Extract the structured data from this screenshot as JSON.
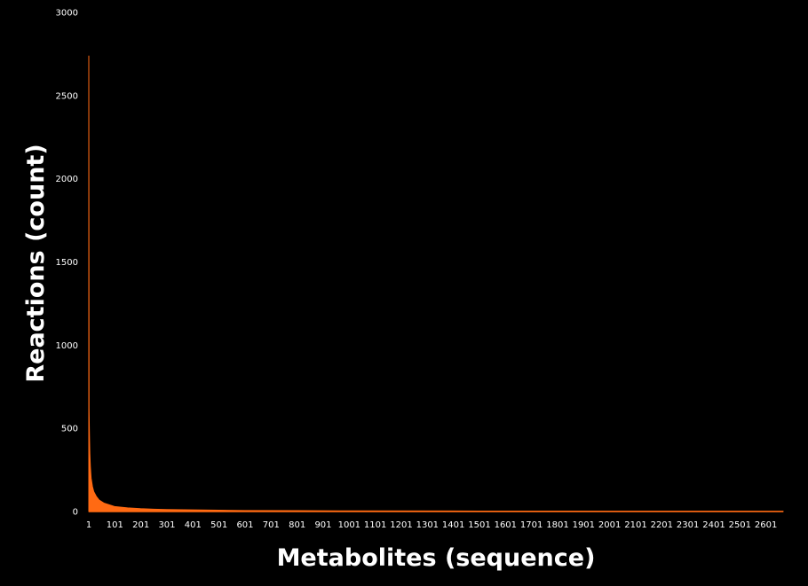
{
  "chart_data": {
    "type": "area",
    "title": "",
    "xlabel": "Metabolites (sequence)",
    "ylabel": "Reactions (count)",
    "ylim": [
      0,
      3000
    ],
    "yticks": [
      0,
      500,
      1000,
      1500,
      2000,
      2500,
      3000
    ],
    "xlim": [
      1,
      2667
    ],
    "xticks": [
      "1",
      "101",
      "201",
      "301",
      "401",
      "501",
      "601",
      "701",
      "801",
      "901",
      "1001",
      "1101",
      "1201",
      "1301",
      "1401",
      "1501",
      "1601",
      "1701",
      "1801",
      "1901",
      "2001",
      "2101",
      "2201",
      "2301",
      "2401",
      "2501",
      "2601"
    ],
    "grid": false,
    "background": "#000000",
    "text_color": "#ffffff",
    "series": [
      {
        "color": "#ff6a13",
        "x": [
          1,
          2,
          3,
          4,
          5,
          7,
          10,
          15,
          20,
          30,
          40,
          60,
          80,
          100,
          150,
          200,
          250,
          300,
          400,
          500,
          600,
          800,
          1000,
          1500,
          2000,
          2500,
          2667
        ],
        "y": [
          2740,
          620,
          500,
          420,
          350,
          270,
          200,
          150,
          120,
          90,
          70,
          50,
          40,
          30,
          22,
          17,
          14,
          12,
          10,
          8,
          6,
          5,
          4,
          3,
          2,
          2,
          1
        ]
      }
    ]
  }
}
